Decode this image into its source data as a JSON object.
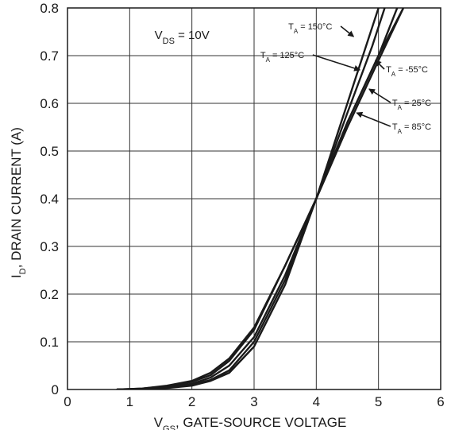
{
  "chart_data": {
    "type": "line",
    "title": "",
    "condition": {
      "main": "V",
      "sub": "DS",
      "rest": " = 10V"
    },
    "xlabel": {
      "main": "V",
      "sub": "GS",
      "rest": ", GATE-SOURCE VOLTAGE"
    },
    "ylabel": {
      "main": "I",
      "sub": "D",
      "rest": ", DRAIN CURRENT (A)"
    },
    "xlim": [
      0,
      6
    ],
    "ylim": [
      0,
      0.8
    ],
    "x_ticks": [
      "0",
      "1",
      "2",
      "3",
      "4",
      "5",
      "6"
    ],
    "y_ticks": [
      "0",
      "0.1",
      "0.2",
      "0.3",
      "0.4",
      "0.5",
      "0.6",
      "0.7",
      "0.8"
    ],
    "grid": true,
    "series": [
      {
        "name": "150",
        "label": {
          "main": "T",
          "sub": "A",
          "rest": " = 150°C"
        },
        "points": [
          [
            0.8,
            0
          ],
          [
            1.2,
            0.002
          ],
          [
            1.6,
            0.008
          ],
          [
            2.0,
            0.018
          ],
          [
            2.3,
            0.035
          ],
          [
            2.6,
            0.065
          ],
          [
            3.0,
            0.13
          ],
          [
            3.5,
            0.26
          ],
          [
            4.0,
            0.4
          ],
          [
            4.5,
            0.6
          ],
          [
            4.8,
            0.72
          ],
          [
            5.0,
            0.8
          ]
        ]
      },
      {
        "name": "125",
        "label": {
          "main": "T",
          "sub": "A",
          "rest": " = 125°C"
        },
        "points": [
          [
            0.8,
            0
          ],
          [
            1.2,
            0.002
          ],
          [
            1.6,
            0.007
          ],
          [
            2.0,
            0.016
          ],
          [
            2.3,
            0.03
          ],
          [
            2.6,
            0.06
          ],
          [
            3.0,
            0.125
          ],
          [
            3.5,
            0.26
          ],
          [
            4.0,
            0.4
          ],
          [
            4.5,
            0.58
          ],
          [
            4.9,
            0.72
          ],
          [
            5.1,
            0.8
          ]
        ]
      },
      {
        "name": "85",
        "label": {
          "main": "T",
          "sub": "A",
          "rest": " = 85°C"
        },
        "points": [
          [
            0.8,
            0
          ],
          [
            1.2,
            0.001
          ],
          [
            1.6,
            0.005
          ],
          [
            2.0,
            0.012
          ],
          [
            2.3,
            0.025
          ],
          [
            2.6,
            0.05
          ],
          [
            3.0,
            0.11
          ],
          [
            3.5,
            0.24
          ],
          [
            4.0,
            0.4
          ],
          [
            4.5,
            0.56
          ],
          [
            5.0,
            0.7
          ],
          [
            5.4,
            0.8
          ]
        ]
      },
      {
        "name": "25",
        "label": {
          "main": "T",
          "sub": "A",
          "rest": " = 25°C"
        },
        "points": [
          [
            0.8,
            0
          ],
          [
            1.2,
            0.001
          ],
          [
            1.6,
            0.004
          ],
          [
            2.0,
            0.01
          ],
          [
            2.3,
            0.02
          ],
          [
            2.6,
            0.04
          ],
          [
            3.0,
            0.1
          ],
          [
            3.5,
            0.23
          ],
          [
            4.0,
            0.4
          ],
          [
            4.5,
            0.55
          ],
          [
            5.0,
            0.69
          ],
          [
            5.4,
            0.8
          ]
        ]
      },
      {
        "name": "-55",
        "label": {
          "main": "T",
          "sub": "A",
          "rest": " = -55°C"
        },
        "points": [
          [
            0.8,
            0
          ],
          [
            1.2,
            0.001
          ],
          [
            1.6,
            0.003
          ],
          [
            2.0,
            0.008
          ],
          [
            2.3,
            0.018
          ],
          [
            2.6,
            0.035
          ],
          [
            3.0,
            0.09
          ],
          [
            3.5,
            0.22
          ],
          [
            4.0,
            0.4
          ],
          [
            4.5,
            0.56
          ],
          [
            5.0,
            0.7
          ],
          [
            5.3,
            0.8
          ]
        ]
      }
    ],
    "annotations": [
      {
        "series": "150",
        "ax": 4.6,
        "ay": 0.74,
        "text_x": 3.55,
        "text_y": 0.755,
        "anchor": "start"
      },
      {
        "series": "125",
        "ax": 4.7,
        "ay": 0.67,
        "text_x": 3.1,
        "text_y": 0.695,
        "anchor": "start"
      },
      {
        "series": "-55",
        "ax": 4.95,
        "ay": 0.69,
        "text_x": 5.12,
        "text_y": 0.665,
        "anchor": "start"
      },
      {
        "series": "25",
        "ax": 4.85,
        "ay": 0.63,
        "text_x": 5.22,
        "text_y": 0.595,
        "anchor": "start"
      },
      {
        "series": "85",
        "ax": 4.65,
        "ay": 0.58,
        "text_x": 5.22,
        "text_y": 0.545,
        "anchor": "start"
      }
    ]
  }
}
